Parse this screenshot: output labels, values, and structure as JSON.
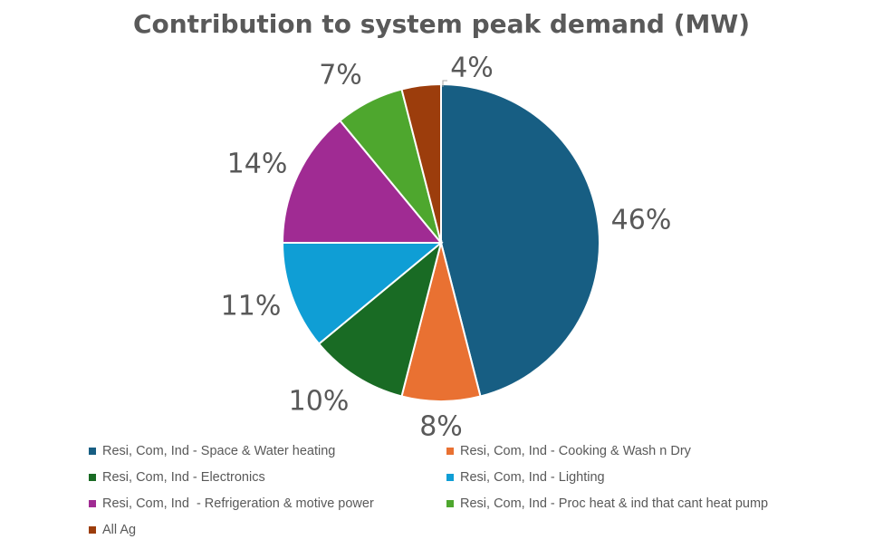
{
  "chart_data": {
    "type": "pie",
    "title": "Contribution to system peak demand (MW)",
    "slices": [
      {
        "label": "Resi, Com, Ind - Space & Water heating",
        "value": 46,
        "display": "46%",
        "color": "#175E83"
      },
      {
        "label": "Resi, Com, Ind - Cooking & Wash n Dry",
        "value": 8,
        "display": "8%",
        "color": "#E97132"
      },
      {
        "label": "Resi, Com, Ind - Electronics",
        "value": 10,
        "display": "10%",
        "color": "#196B24"
      },
      {
        "label": "Resi, Com, Ind - Lighting",
        "value": 11,
        "display": "11%",
        "color": "#0F9ED5"
      },
      {
        "label": "Resi, Com, Ind  - Refrigeration & motive power",
        "value": 14,
        "display": "14%",
        "color": "#A02B93"
      },
      {
        "label": "Resi, Com, Ind - Proc heat & ind that cant heat pump",
        "value": 7,
        "display": "7%",
        "color": "#4EA72E"
      },
      {
        "label": "All Ag",
        "value": 4,
        "display": "4%",
        "color": "#9C3D0C"
      }
    ],
    "legend_position": "bottom"
  }
}
